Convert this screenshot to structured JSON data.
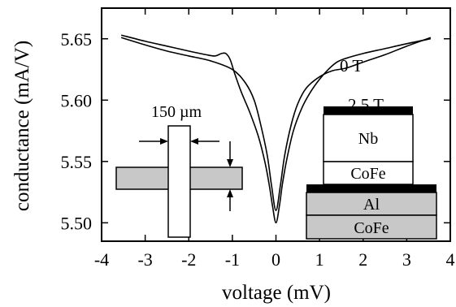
{
  "chart_data": {
    "type": "line",
    "title": "",
    "xlabel": "voltage (mV)",
    "ylabel": "conductance (mA/V)",
    "xlim": [
      -4,
      4
    ],
    "ylim": [
      5.485,
      5.675
    ],
    "x_ticks": [
      -4,
      -3,
      -2,
      -1,
      0,
      1,
      2,
      3,
      4
    ],
    "x_tick_labels": [
      "-4",
      "-3",
      "-2",
      "-1",
      "0",
      "1",
      "2",
      "3",
      "4"
    ],
    "y_ticks": [
      5.5,
      5.55,
      5.6,
      5.65
    ],
    "y_tick_labels": [
      "5.50",
      "5.55",
      "5.60",
      "5.65"
    ],
    "grid": false,
    "legend": "none",
    "series": [
      {
        "name": "0 T",
        "color": "#000000",
        "x": [
          -3.55,
          -3.0,
          -2.5,
          -2.0,
          -1.6,
          -1.4,
          -1.25,
          -1.15,
          -1.05,
          -0.95,
          -0.8,
          -0.6,
          -0.4,
          -0.25,
          -0.15,
          -0.08,
          0.0,
          0.08,
          0.15,
          0.25,
          0.4,
          0.6,
          0.8,
          1.0,
          1.2,
          1.4,
          1.6,
          2.0,
          2.5,
          3.0,
          3.55
        ],
        "y": [
          5.653,
          5.648,
          5.644,
          5.64,
          5.637,
          5.636,
          5.638,
          5.638,
          5.633,
          5.622,
          5.607,
          5.59,
          5.57,
          5.549,
          5.53,
          5.514,
          5.5,
          5.514,
          5.532,
          5.552,
          5.575,
          5.594,
          5.607,
          5.617,
          5.625,
          5.631,
          5.634,
          5.638,
          5.642,
          5.646,
          5.65
        ]
      },
      {
        "name": "2.5 T",
        "color": "#000000",
        "x": [
          -3.55,
          -3.0,
          -2.5,
          -2.0,
          -1.5,
          -1.0,
          -0.7,
          -0.5,
          -0.35,
          -0.2,
          -0.1,
          0.0,
          0.1,
          0.2,
          0.35,
          0.5,
          0.7,
          1.0,
          1.3,
          1.6,
          2.0,
          2.5,
          3.0,
          3.55
        ],
        "y": [
          5.651,
          5.645,
          5.64,
          5.636,
          5.632,
          5.625,
          5.614,
          5.6,
          5.58,
          5.555,
          5.53,
          5.51,
          5.53,
          5.555,
          5.58,
          5.597,
          5.61,
          5.619,
          5.624,
          5.626,
          5.631,
          5.637,
          5.644,
          5.651
        ]
      }
    ],
    "annotations": [
      "0 T",
      "2.5 T"
    ],
    "inset_dimension_label": "150 µm",
    "inset_layers": [
      "Nb",
      "CoFe",
      "Al",
      "CoFe"
    ]
  }
}
